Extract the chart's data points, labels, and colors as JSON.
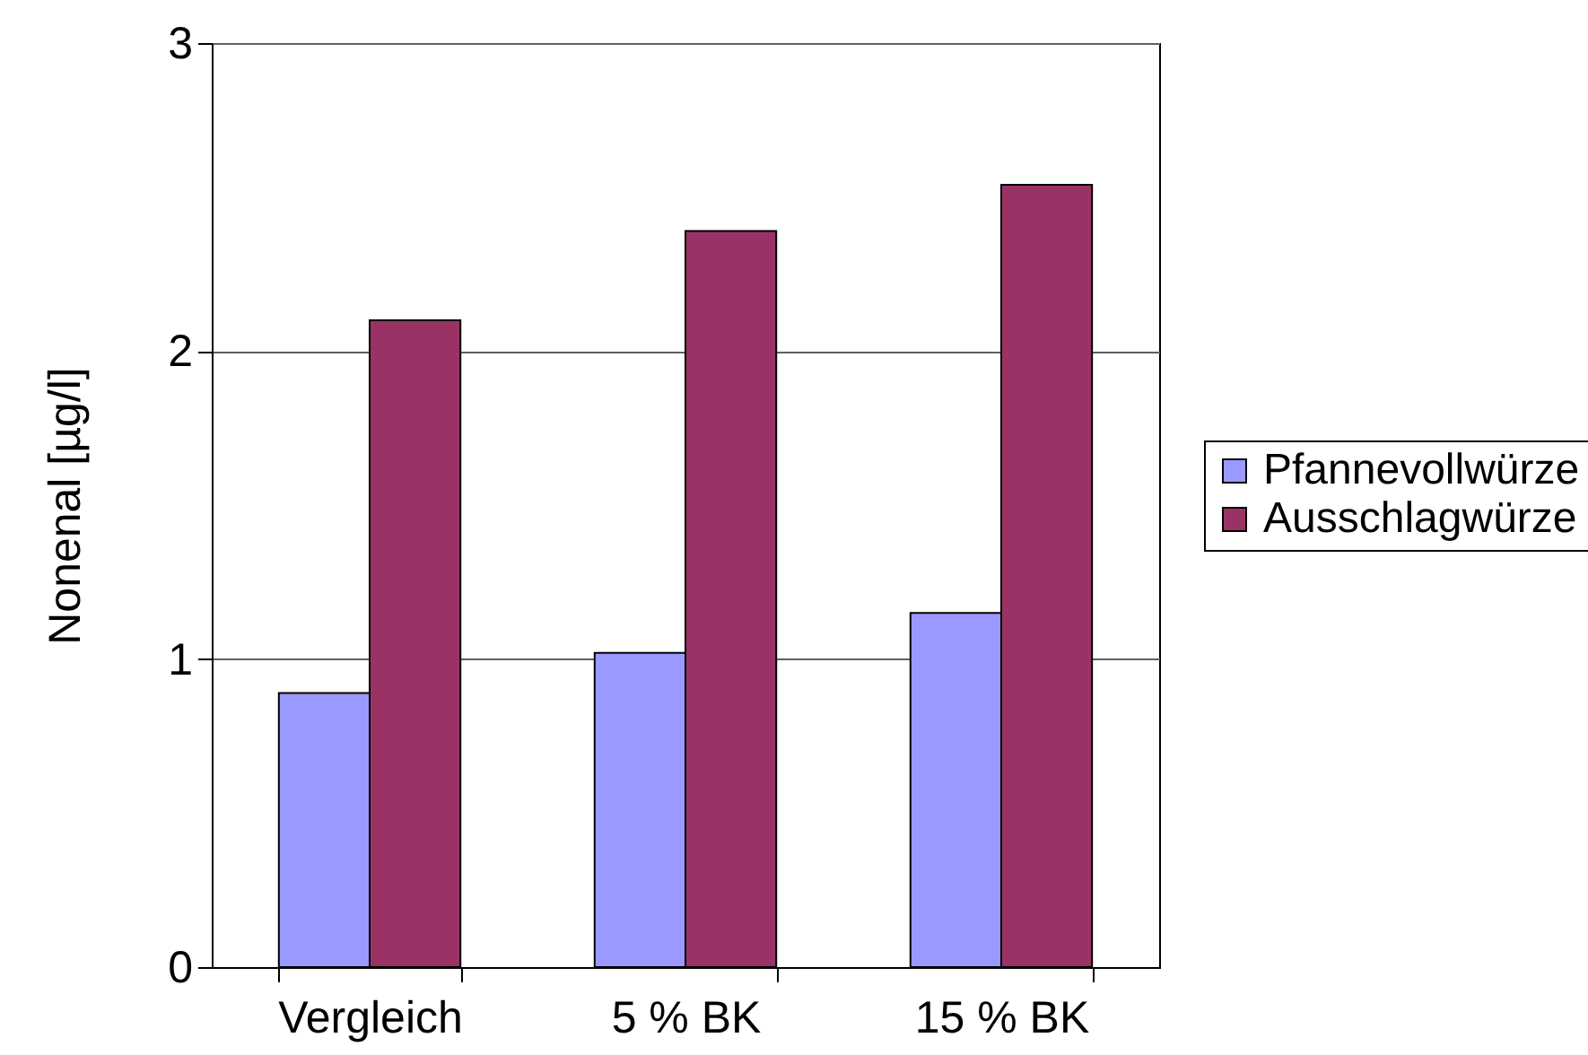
{
  "chart_data": {
    "type": "bar",
    "ylabel": "Nonenal [µg/l]",
    "categories": [
      "Vergleich",
      "5 % BK",
      "15 % BK"
    ],
    "series": [
      {
        "name": "Pfannevollwürze",
        "color": "#9999ff",
        "values": [
          0.89,
          1.02,
          1.15
        ]
      },
      {
        "name": "Ausschlagwürze",
        "color": "#993366",
        "values": [
          2.1,
          2.39,
          2.54
        ]
      }
    ],
    "ylim": [
      0,
      3
    ],
    "yticks": [
      0,
      1,
      2,
      3
    ],
    "grid": "y",
    "legend": "right"
  }
}
